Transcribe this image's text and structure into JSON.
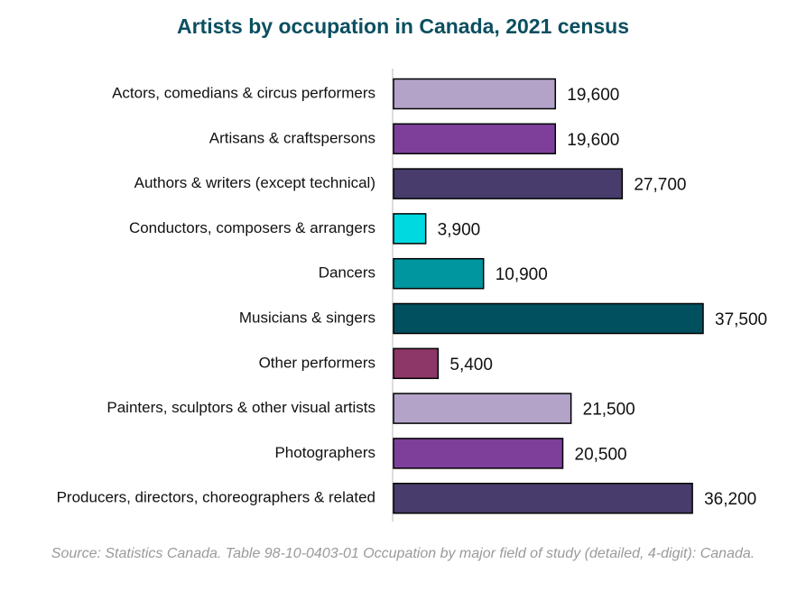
{
  "chart_data": {
    "type": "bar",
    "orientation": "horizontal",
    "title": "Artists by occupation in Canada, 2021 census",
    "categories": [
      "Actors, comedians & circus performers",
      "Artisans & craftspersons",
      "Authors & writers (except technical)",
      "Conductors, composers & arrangers",
      "Dancers",
      "Musicians & singers",
      "Other performers",
      "Painters, sculptors & other visual artists",
      "Photographers",
      "Producers, directors, choreographers & related"
    ],
    "values": [
      19600,
      19600,
      27700,
      3900,
      10900,
      37500,
      5400,
      21500,
      20500,
      36200
    ],
    "value_labels": [
      "19,600",
      "19,600",
      "27,700",
      "3,900",
      "10,900",
      "37,500",
      "5,400",
      "21,500",
      "20,500",
      "36,200"
    ],
    "bar_colors": [
      "#b3a3c9",
      "#7e3f9b",
      "#473c6b",
      "#00d9e0",
      "#00969f",
      "#00505f",
      "#8c3767",
      "#b3a3c9",
      "#7e3f9b",
      "#473c6b"
    ],
    "xlim": [
      0,
      37500
    ],
    "grid": false,
    "legend": "none",
    "source": "Source: Statistics Canada. Table 98-10-0403-01  Occupation by major field of study (detailed, 4-digit): Canada."
  }
}
